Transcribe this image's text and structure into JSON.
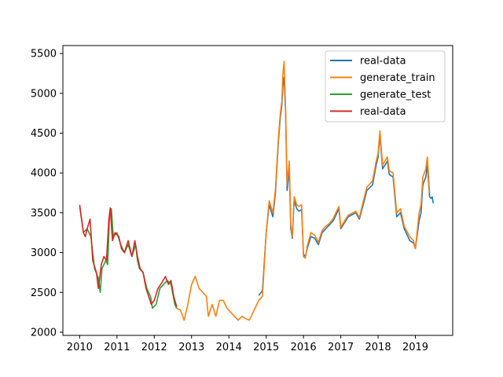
{
  "chart_data": {
    "type": "line",
    "title": "",
    "xlabel": "",
    "ylabel": "",
    "xlim": [
      2009.55,
      2020.0
    ],
    "ylim": [
      1960,
      5600
    ],
    "x_ticks": [
      2010,
      2011,
      2012,
      2013,
      2014,
      2015,
      2016,
      2017,
      2018,
      2019
    ],
    "y_ticks": [
      2000,
      2500,
      3000,
      3500,
      4000,
      4500,
      5000,
      5500
    ],
    "grid": false,
    "legend_position": "top-right",
    "series": [
      {
        "name": "real-data",
        "color": "#1f77b4",
        "points": [
          [
            2014.8,
            2460
          ],
          [
            2014.9,
            2520
          ],
          [
            2015.0,
            3250
          ],
          [
            2015.08,
            3600
          ],
          [
            2015.18,
            3450
          ],
          [
            2015.25,
            3750
          ],
          [
            2015.33,
            4400
          ],
          [
            2015.38,
            4700
          ],
          [
            2015.42,
            4850
          ],
          [
            2015.45,
            5100
          ],
          [
            2015.48,
            5200
          ],
          [
            2015.52,
            4750
          ],
          [
            2015.56,
            3780
          ],
          [
            2015.62,
            4050
          ],
          [
            2015.66,
            3300
          ],
          [
            2015.7,
            3180
          ],
          [
            2015.75,
            3650
          ],
          [
            2015.82,
            3550
          ],
          [
            2015.88,
            3520
          ],
          [
            2015.95,
            3540
          ],
          [
            2016.0,
            2980
          ],
          [
            2016.05,
            2950
          ],
          [
            2016.1,
            3050
          ],
          [
            2016.2,
            3200
          ],
          [
            2016.3,
            3180
          ],
          [
            2016.4,
            3100
          ],
          [
            2016.5,
            3250
          ],
          [
            2016.6,
            3300
          ],
          [
            2016.7,
            3350
          ],
          [
            2016.8,
            3400
          ],
          [
            2016.95,
            3550
          ],
          [
            2017.0,
            3300
          ],
          [
            2017.2,
            3450
          ],
          [
            2017.4,
            3500
          ],
          [
            2017.5,
            3420
          ],
          [
            2017.6,
            3600
          ],
          [
            2017.7,
            3780
          ],
          [
            2017.85,
            3850
          ],
          [
            2017.95,
            4100
          ],
          [
            2018.0,
            4200
          ],
          [
            2018.05,
            4480
          ],
          [
            2018.12,
            4050
          ],
          [
            2018.25,
            4150
          ],
          [
            2018.3,
            3980
          ],
          [
            2018.4,
            3950
          ],
          [
            2018.5,
            3450
          ],
          [
            2018.6,
            3500
          ],
          [
            2018.7,
            3300
          ],
          [
            2018.85,
            3150
          ],
          [
            2018.95,
            3120
          ],
          [
            2019.0,
            3050
          ],
          [
            2019.1,
            3400
          ],
          [
            2019.15,
            3500
          ],
          [
            2019.2,
            3850
          ],
          [
            2019.28,
            3950
          ],
          [
            2019.32,
            4100
          ],
          [
            2019.38,
            3700
          ],
          [
            2019.42,
            3680
          ],
          [
            2019.45,
            3700
          ],
          [
            2019.48,
            3620
          ]
        ]
      },
      {
        "name": "generate_train",
        "color": "#ff7f0e",
        "points": [
          [
            2012.6,
            2300
          ],
          [
            2012.7,
            2280
          ],
          [
            2012.8,
            2150
          ],
          [
            2012.9,
            2350
          ],
          [
            2013.0,
            2600
          ],
          [
            2013.1,
            2700
          ],
          [
            2013.2,
            2550
          ],
          [
            2013.3,
            2500
          ],
          [
            2013.4,
            2450
          ],
          [
            2013.45,
            2200
          ],
          [
            2013.55,
            2350
          ],
          [
            2013.65,
            2200
          ],
          [
            2013.75,
            2400
          ],
          [
            2013.85,
            2400
          ],
          [
            2013.95,
            2300
          ],
          [
            2014.05,
            2250
          ],
          [
            2014.15,
            2200
          ],
          [
            2014.25,
            2150
          ],
          [
            2014.35,
            2200
          ],
          [
            2014.45,
            2170
          ],
          [
            2014.55,
            2150
          ],
          [
            2014.6,
            2200
          ],
          [
            2014.7,
            2300
          ],
          [
            2014.8,
            2400
          ],
          [
            2014.9,
            2450
          ],
          [
            2015.0,
            3250
          ],
          [
            2015.08,
            3650
          ],
          [
            2015.18,
            3500
          ],
          [
            2015.25,
            3800
          ],
          [
            2015.33,
            4450
          ],
          [
            2015.38,
            4750
          ],
          [
            2015.42,
            4900
          ],
          [
            2015.45,
            5250
          ],
          [
            2015.48,
            5400
          ],
          [
            2015.52,
            4800
          ],
          [
            2015.56,
            3850
          ],
          [
            2015.62,
            4150
          ],
          [
            2015.66,
            3350
          ],
          [
            2015.7,
            3200
          ],
          [
            2015.75,
            3700
          ],
          [
            2015.82,
            3600
          ],
          [
            2015.88,
            3580
          ],
          [
            2015.95,
            3600
          ],
          [
            2016.0,
            2950
          ],
          [
            2016.05,
            2930
          ],
          [
            2016.1,
            3080
          ],
          [
            2016.2,
            3250
          ],
          [
            2016.3,
            3220
          ],
          [
            2016.4,
            3130
          ],
          [
            2016.5,
            3280
          ],
          [
            2016.6,
            3330
          ],
          [
            2016.7,
            3370
          ],
          [
            2016.8,
            3430
          ],
          [
            2016.95,
            3580
          ],
          [
            2017.0,
            3320
          ],
          [
            2017.2,
            3470
          ],
          [
            2017.4,
            3520
          ],
          [
            2017.5,
            3440
          ],
          [
            2017.6,
            3640
          ],
          [
            2017.7,
            3820
          ],
          [
            2017.85,
            3900
          ],
          [
            2017.95,
            4150
          ],
          [
            2018.0,
            4250
          ],
          [
            2018.05,
            4530
          ],
          [
            2018.12,
            4100
          ],
          [
            2018.25,
            4200
          ],
          [
            2018.3,
            4030
          ],
          [
            2018.4,
            4000
          ],
          [
            2018.5,
            3500
          ],
          [
            2018.6,
            3550
          ],
          [
            2018.7,
            3330
          ],
          [
            2018.85,
            3200
          ],
          [
            2018.95,
            3150
          ],
          [
            2019.0,
            3050
          ],
          [
            2019.1,
            3500
          ],
          [
            2019.15,
            3600
          ],
          [
            2019.2,
            3950
          ],
          [
            2019.28,
            4050
          ],
          [
            2019.32,
            4200
          ],
          [
            2019.38,
            3750
          ]
        ]
      },
      {
        "name": "generate_test",
        "color": "#2ca02c",
        "points": [
          [
            2010.0,
            3580
          ],
          [
            2010.1,
            3250
          ],
          [
            2010.2,
            3300
          ],
          [
            2010.3,
            3200
          ],
          [
            2010.4,
            2800
          ],
          [
            2010.5,
            2680
          ],
          [
            2010.55,
            2500
          ],
          [
            2010.6,
            2800
          ],
          [
            2010.7,
            2900
          ],
          [
            2010.75,
            2850
          ],
          [
            2010.8,
            3450
          ],
          [
            2010.85,
            3550
          ],
          [
            2010.9,
            3200
          ],
          [
            2011.0,
            3250
          ],
          [
            2011.1,
            3100
          ],
          [
            2011.2,
            3000
          ],
          [
            2011.3,
            3100
          ],
          [
            2011.4,
            2950
          ],
          [
            2011.5,
            3100
          ],
          [
            2011.55,
            2900
          ],
          [
            2011.6,
            2800
          ],
          [
            2011.7,
            2750
          ],
          [
            2011.8,
            2550
          ],
          [
            2011.9,
            2450
          ],
          [
            2011.95,
            2300
          ],
          [
            2012.05,
            2350
          ],
          [
            2012.15,
            2550
          ],
          [
            2012.25,
            2600
          ],
          [
            2012.35,
            2650
          ],
          [
            2012.45,
            2600
          ],
          [
            2012.55,
            2350
          ],
          [
            2012.6,
            2300
          ]
        ]
      },
      {
        "name": "real-data",
        "color": "#d62728",
        "points": [
          [
            2010.0,
            3600
          ],
          [
            2010.1,
            3250
          ],
          [
            2010.15,
            3200
          ],
          [
            2010.2,
            3300
          ],
          [
            2010.28,
            3420
          ],
          [
            2010.35,
            2900
          ],
          [
            2010.45,
            2750
          ],
          [
            2010.5,
            2550
          ],
          [
            2010.58,
            2850
          ],
          [
            2010.65,
            2950
          ],
          [
            2010.72,
            2900
          ],
          [
            2010.78,
            3400
          ],
          [
            2010.82,
            3560
          ],
          [
            2010.88,
            3150
          ],
          [
            2010.95,
            3250
          ],
          [
            2011.05,
            3200
          ],
          [
            2011.12,
            3050
          ],
          [
            2011.2,
            3000
          ],
          [
            2011.3,
            3150
          ],
          [
            2011.4,
            2950
          ],
          [
            2011.48,
            3150
          ],
          [
            2011.55,
            2950
          ],
          [
            2011.62,
            2800
          ],
          [
            2011.7,
            2750
          ],
          [
            2011.78,
            2550
          ],
          [
            2011.85,
            2450
          ],
          [
            2011.92,
            2350
          ],
          [
            2012.0,
            2400
          ],
          [
            2012.1,
            2550
          ],
          [
            2012.2,
            2620
          ],
          [
            2012.3,
            2700
          ],
          [
            2012.38,
            2600
          ],
          [
            2012.45,
            2650
          ],
          [
            2012.52,
            2450
          ],
          [
            2012.6,
            2320
          ]
        ]
      }
    ]
  }
}
